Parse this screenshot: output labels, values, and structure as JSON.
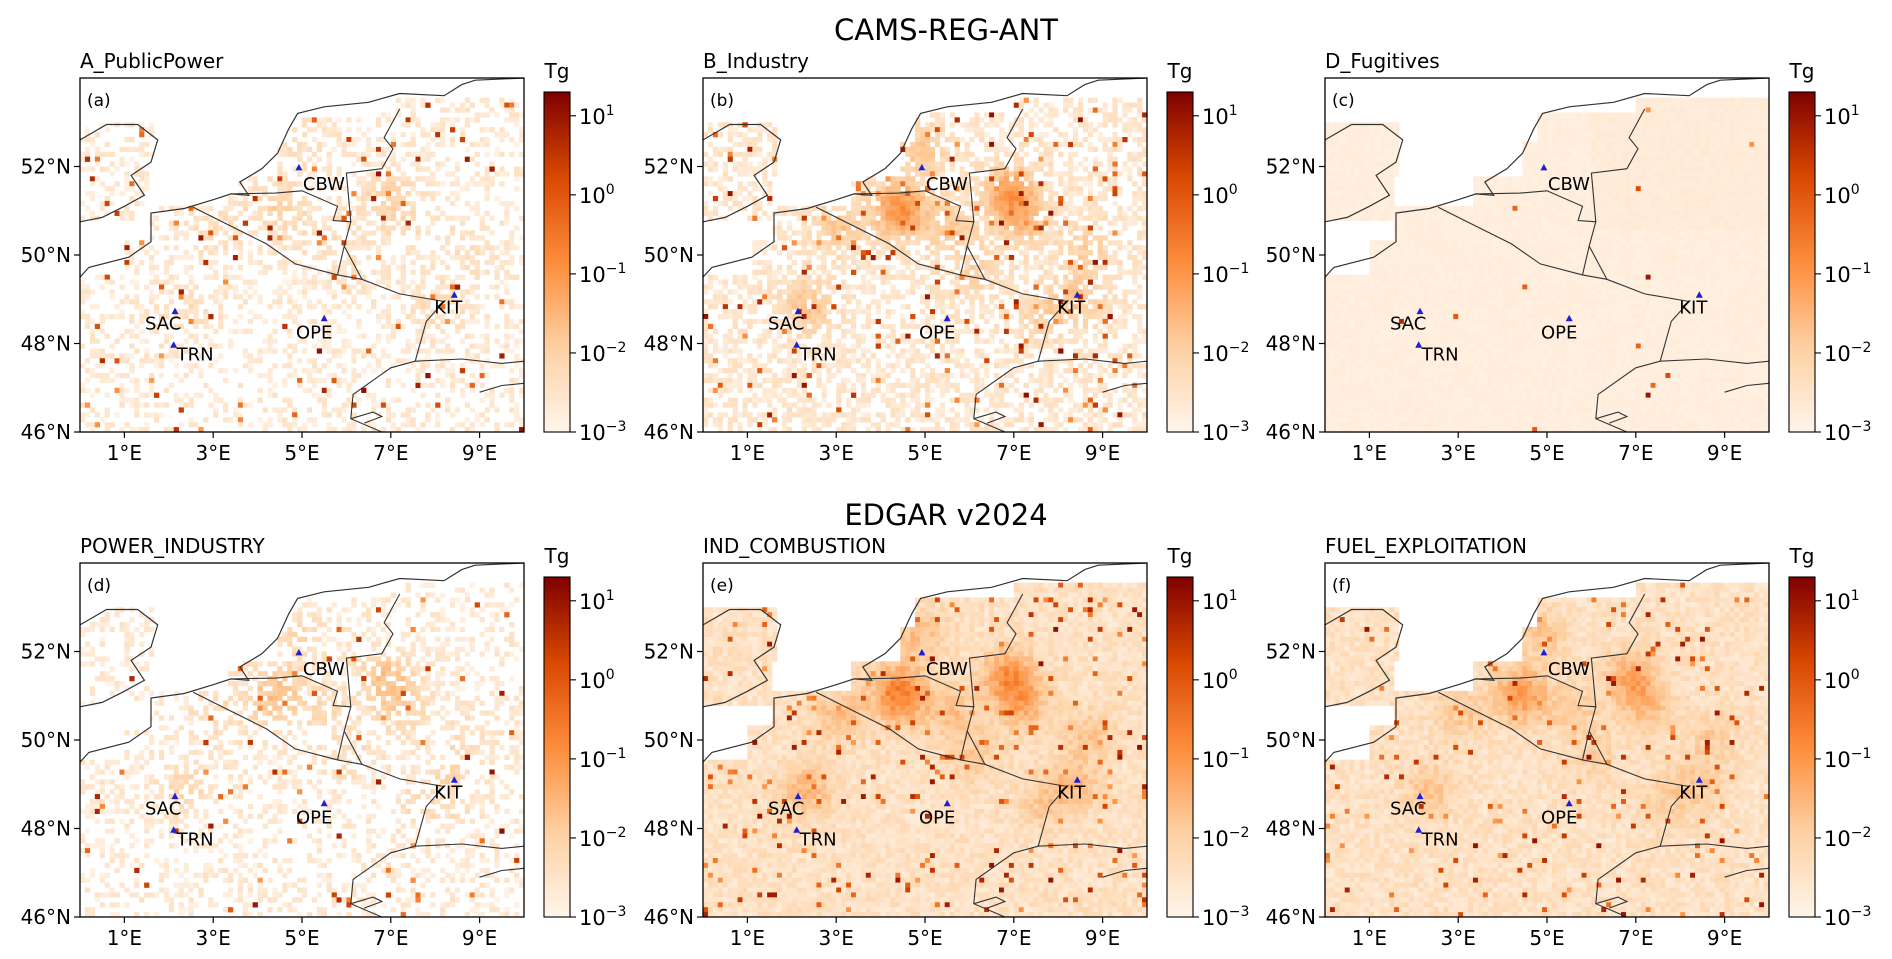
{
  "figure": {
    "row_titles": [
      "CAMS-REG-ANT",
      "EDGAR v2024"
    ],
    "colorbar_unit": "Tg",
    "colorbar_ticks": [
      {
        "base": "10",
        "exp": "1",
        "value": 10
      },
      {
        "base": "10",
        "exp": "0",
        "value": 1
      },
      {
        "base": "10",
        "exp": "−1",
        "value": 0.1
      },
      {
        "base": "10",
        "exp": "−2",
        "value": 0.01
      },
      {
        "base": "10",
        "exp": "−3",
        "value": 0.001
      }
    ],
    "colorbar_scale": "log",
    "colormap_colors": [
      "#fff5eb",
      "#fdd0a2",
      "#fd8d3c",
      "#d94801",
      "#7f0000"
    ],
    "lon_range": [
      0,
      10
    ],
    "lat_range": [
      46,
      54
    ],
    "x_tick_labels": [
      {
        "lon": 1,
        "label": "1°E"
      },
      {
        "lon": 3,
        "label": "3°E"
      },
      {
        "lon": 5,
        "label": "5°E"
      },
      {
        "lon": 7,
        "label": "7°E"
      },
      {
        "lon": 9,
        "label": "9°E"
      }
    ],
    "y_tick_labels": [
      {
        "lat": 52,
        "label": "52°N"
      },
      {
        "lat": 50,
        "label": "50°N"
      },
      {
        "lat": 48,
        "label": "48°N"
      },
      {
        "lat": 46,
        "label": "46°N"
      }
    ],
    "station_marker_color": "#1f1fd6",
    "border_color": "#333333"
  },
  "chart_data": [
    {
      "type": "heatmap",
      "panel_label": "(a)",
      "title": "A_PublicPower",
      "scale": "log",
      "colorbar_range": [
        0.001,
        20
      ],
      "intensity": 0.25,
      "hotspot_density": 0.05,
      "base_fill": "sparse"
    },
    {
      "type": "heatmap",
      "panel_label": "(b)",
      "title": "B_Industry",
      "scale": "log",
      "colorbar_range": [
        0.001,
        20
      ],
      "intensity": 0.55,
      "hotspot_density": 0.06,
      "base_fill": "moderate"
    },
    {
      "type": "heatmap",
      "panel_label": "(c)",
      "title": "D_Fugitives",
      "scale": "log",
      "colorbar_range": [
        0.001,
        20
      ],
      "intensity": 0.08,
      "hotspot_density": 0.002,
      "base_fill": "uniform"
    },
    {
      "type": "heatmap",
      "panel_label": "(d)",
      "title": "POWER_INDUSTRY",
      "scale": "log",
      "colorbar_range": [
        0.001,
        20
      ],
      "intensity": 0.4,
      "hotspot_density": 0.04,
      "base_fill": "sparse"
    },
    {
      "type": "heatmap",
      "panel_label": "(e)",
      "title": "IND_COMBUSTION",
      "scale": "log",
      "colorbar_range": [
        0.001,
        20
      ],
      "intensity": 0.6,
      "hotspot_density": 0.05,
      "base_fill": "dense"
    },
    {
      "type": "heatmap",
      "panel_label": "(f)",
      "title": "FUEL_EXPLOITATION",
      "scale": "log",
      "colorbar_range": [
        0.001,
        20
      ],
      "intensity": 0.45,
      "hotspot_density": 0.03,
      "base_fill": "dense"
    }
  ],
  "stations": [
    {
      "name": "CBW",
      "lon": 4.93,
      "lat": 51.97
    },
    {
      "name": "SAC",
      "lon": 2.14,
      "lat": 48.72
    },
    {
      "name": "TRN",
      "lon": 2.11,
      "lat": 47.96
    },
    {
      "name": "OPE",
      "lon": 5.5,
      "lat": 48.56
    },
    {
      "name": "KIT",
      "lon": 8.43,
      "lat": 49.09
    }
  ]
}
